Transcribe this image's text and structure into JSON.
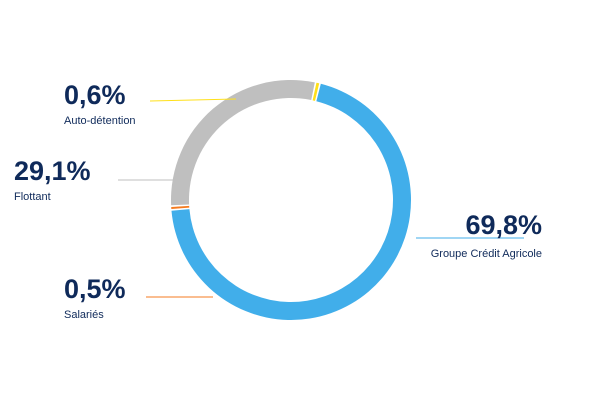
{
  "chart_data": {
    "type": "pie",
    "donut": true,
    "title": "",
    "legend": "none",
    "slices": [
      {
        "label": "Groupe Crédit Agricole",
        "value": 69.8,
        "display": "69,8%",
        "color": "#41aeea"
      },
      {
        "label": "Salariés",
        "value": 0.5,
        "display": "0,5%",
        "color": "#f47b20"
      },
      {
        "label": "Flottant",
        "value": 29.1,
        "display": "29,1%",
        "color": "#bfbfbf"
      },
      {
        "label": "Auto-détention",
        "value": 0.6,
        "display": "0,6%",
        "color": "#ffe01a"
      }
    ]
  },
  "colors": {
    "label_text": "#0f2a5a",
    "leader_line": "#bfbfbf"
  }
}
